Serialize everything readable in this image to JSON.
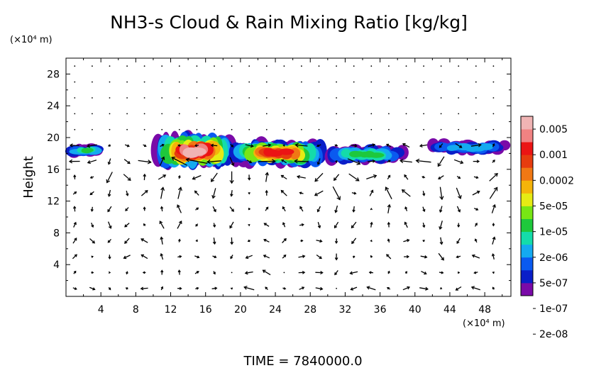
{
  "title": "NH3-s Cloud & Rain Mixing Ratio [kg/kg]",
  "y_unit_label": "(×10⁴ m)",
  "x_unit_label": "(×10⁴ m)",
  "time_label": "TIME  =  7840000.0",
  "chart_data": {
    "type": "heatmap",
    "title": "NH3-s Cloud & Rain Mixing Ratio [kg/kg]",
    "xlabel": "",
    "ylabel": "Height",
    "xlim": [
      0,
      51
    ],
    "ylim": [
      0,
      30
    ],
    "x_ticks": [
      4,
      8,
      12,
      16,
      20,
      24,
      28,
      32,
      36,
      40,
      44,
      48
    ],
    "y_ticks": [
      4,
      8,
      12,
      16,
      20,
      24,
      28
    ],
    "colorbar": {
      "labels": [
        "0.005",
        "0.001",
        "0.0002",
        "5e-05",
        "1e-05",
        "2e-06",
        "5e-07",
        "1e-07",
        "2e-08"
      ],
      "colors": [
        "#7a0aa8",
        "#0a1ec8",
        "#0a5af0",
        "#14aaf0",
        "#14dcaa",
        "#1ec83c",
        "#78e614",
        "#e6eb14",
        "#f5b40a",
        "#f07814",
        "#e63c0f",
        "#eb1414",
        "#f08282",
        "#f0b4b4"
      ]
    },
    "cloud_regions": [
      {
        "x_range": [
          0.5,
          4.0
        ],
        "z_range": [
          17.6,
          19.1
        ],
        "max_level": "1e-05"
      },
      {
        "x_range": [
          10.5,
          19.0
        ],
        "z_range": [
          16.3,
          20.3
        ],
        "max_level": "0.005"
      },
      {
        "x_range": [
          19.0,
          29.5
        ],
        "z_range": [
          16.5,
          19.6
        ],
        "max_level": "0.001"
      },
      {
        "x_range": [
          30.0,
          38.5
        ],
        "z_range": [
          16.8,
          19.0
        ],
        "max_level": "1e-05"
      },
      {
        "x_range": [
          41.5,
          50.5
        ],
        "z_range": [
          17.9,
          19.6
        ],
        "max_level": "2e-06"
      }
    ],
    "wind_vectors": "overlay arrows (velocity field)",
    "time": "7840000.0"
  }
}
